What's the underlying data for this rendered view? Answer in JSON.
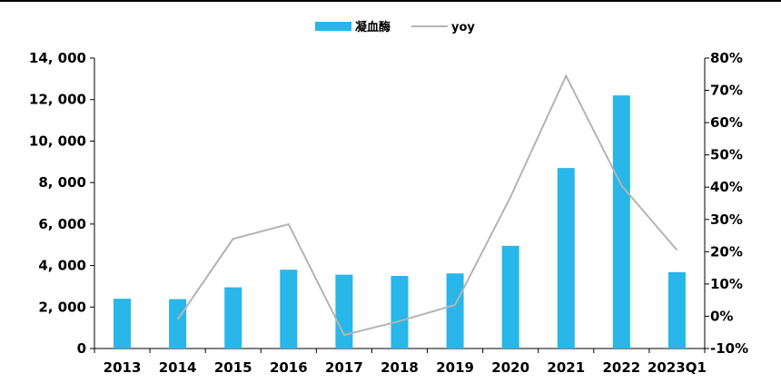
{
  "chart_data": {
    "type": "bar",
    "categories": [
      "2013",
      "2014",
      "2015",
      "2016",
      "2017",
      "2018",
      "2019",
      "2020",
      "2021",
      "2022",
      "2023Q1"
    ],
    "series": [
      {
        "name": "凝血酶",
        "type": "bar",
        "axis": "left",
        "color": "#29B6E8",
        "values": [
          2400,
          2380,
          2950,
          3800,
          3560,
          3500,
          3620,
          4950,
          8700,
          12200,
          3680
        ]
      },
      {
        "name": "yoy",
        "type": "line",
        "axis": "right",
        "color": "#B4B4B4",
        "values": [
          null,
          -1,
          24,
          28.5,
          -5.8,
          -1.5,
          3.5,
          37,
          74.5,
          40.5,
          20.5
        ]
      }
    ],
    "y_left": {
      "min": 0,
      "max": 14000,
      "ticks": [
        0,
        2000,
        4000,
        6000,
        8000,
        10000,
        12000,
        14000
      ],
      "tick_labels": [
        "0",
        "2, 000",
        "4, 000",
        "6, 000",
        "8, 000",
        "10, 000",
        "12, 000",
        "14, 000"
      ]
    },
    "y_right": {
      "min": -10,
      "max": 80,
      "ticks": [
        -10,
        0,
        10,
        20,
        30,
        40,
        50,
        60,
        70,
        80
      ],
      "tick_labels": [
        "-10%",
        "0%",
        "10%",
        "20%",
        "30%",
        "40%",
        "50%",
        "60%",
        "70%",
        "80%"
      ]
    },
    "legend": {
      "position": "top-center",
      "entries": [
        "凝血酶",
        "yoy"
      ]
    },
    "grid": false,
    "title": "",
    "xlabel": "",
    "ylabel": ""
  }
}
